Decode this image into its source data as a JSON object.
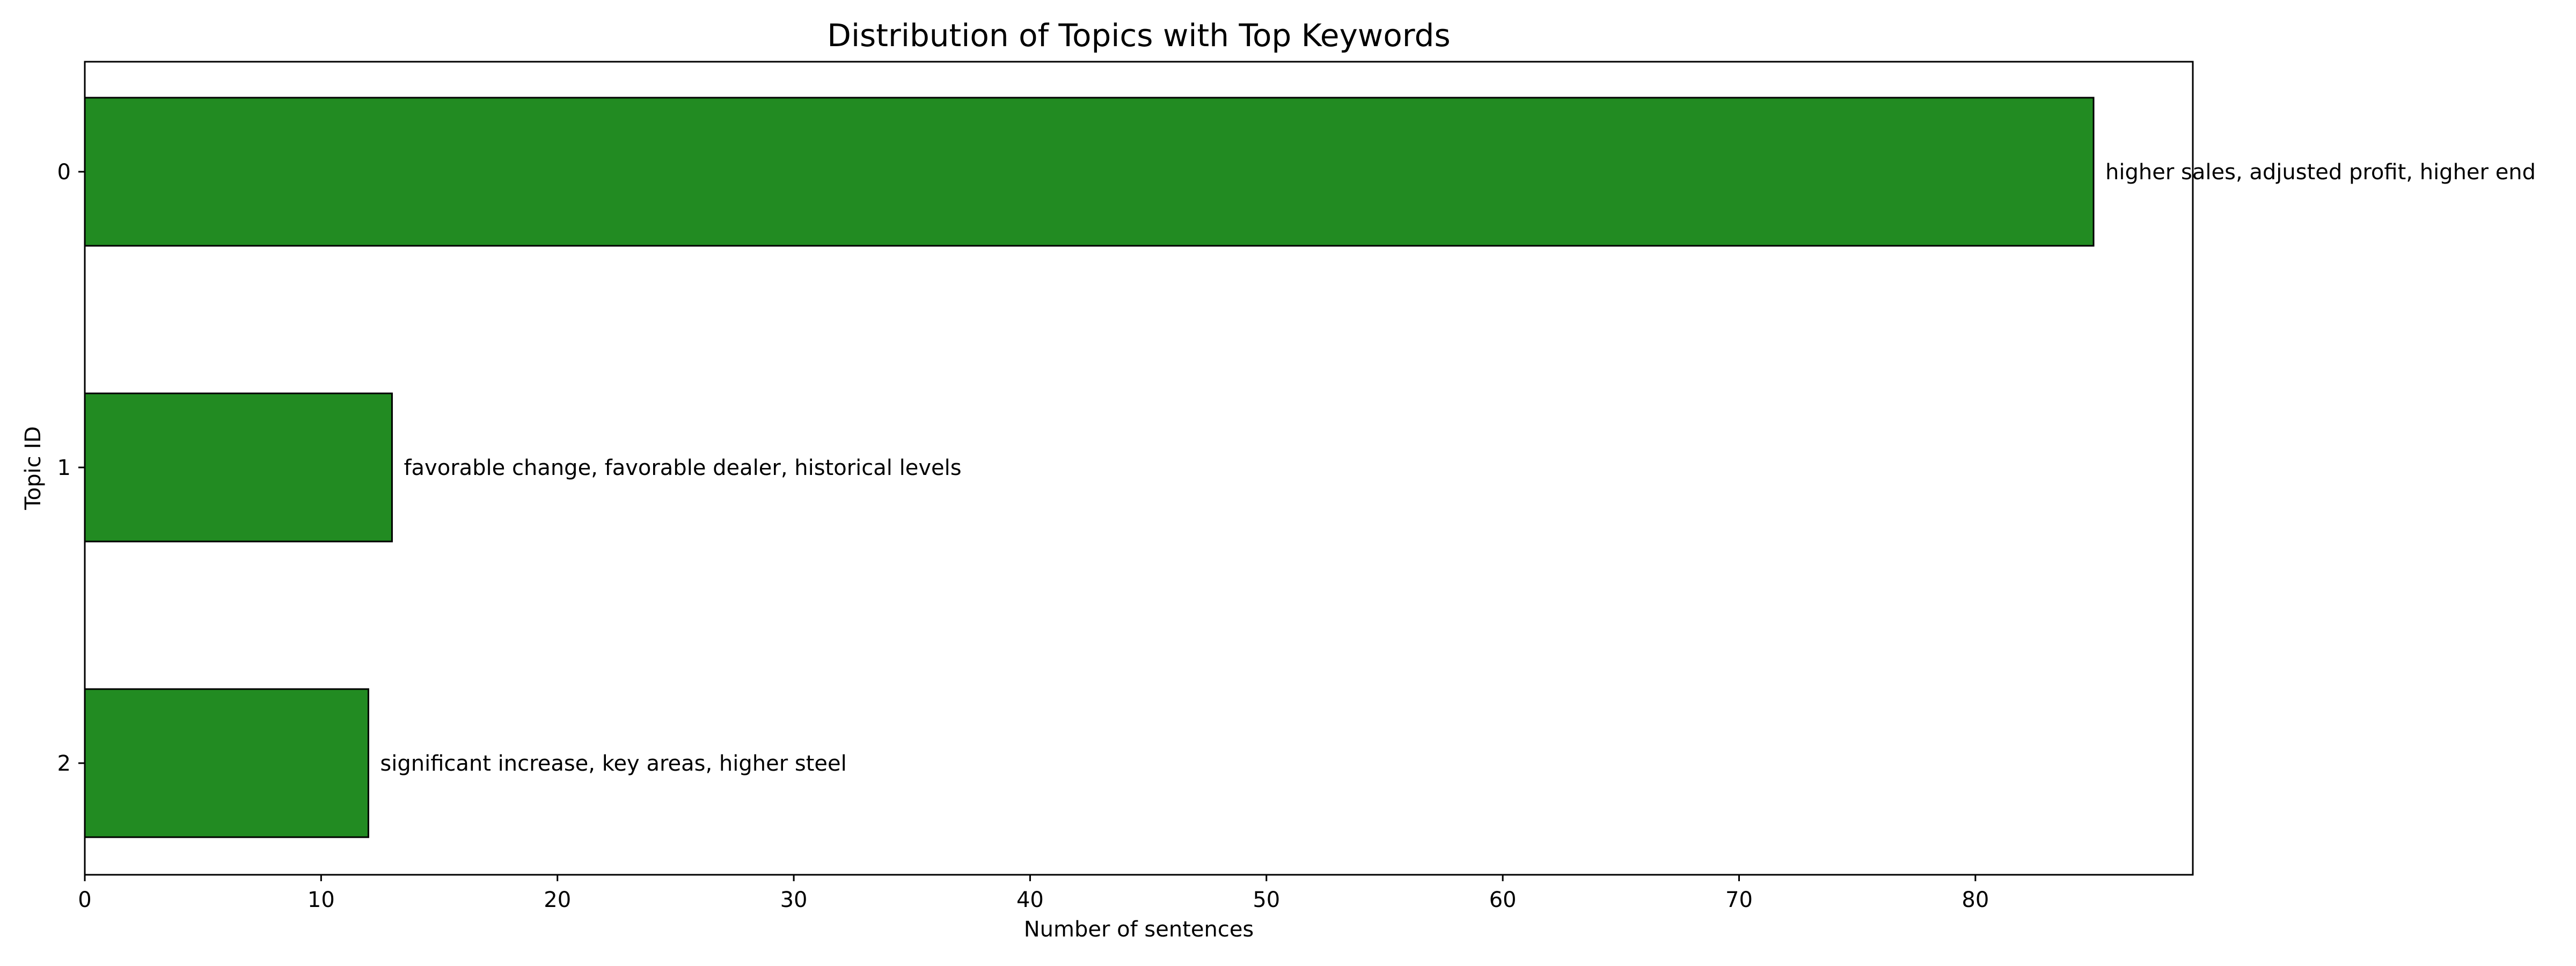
{
  "chart_data": {
    "type": "bar",
    "orientation": "horizontal",
    "title": "Distribution of Topics with Top Keywords",
    "xlabel": "Number of sentences",
    "ylabel": "Topic ID",
    "xlim": [
      0,
      89.2
    ],
    "x_ticks": [
      0,
      10,
      20,
      30,
      40,
      50,
      60,
      70,
      80
    ],
    "categories": [
      "0",
      "1",
      "2"
    ],
    "values": [
      85,
      13,
      12
    ],
    "bar_labels": [
      "higher sales, adjusted profit, higher end",
      "favorable change, favorable dealer, historical levels",
      "significant increase, key areas, higher steel"
    ],
    "bar_color": "#228b22",
    "bar_edge_color": "#000000",
    "grid": false,
    "legend": "none"
  }
}
